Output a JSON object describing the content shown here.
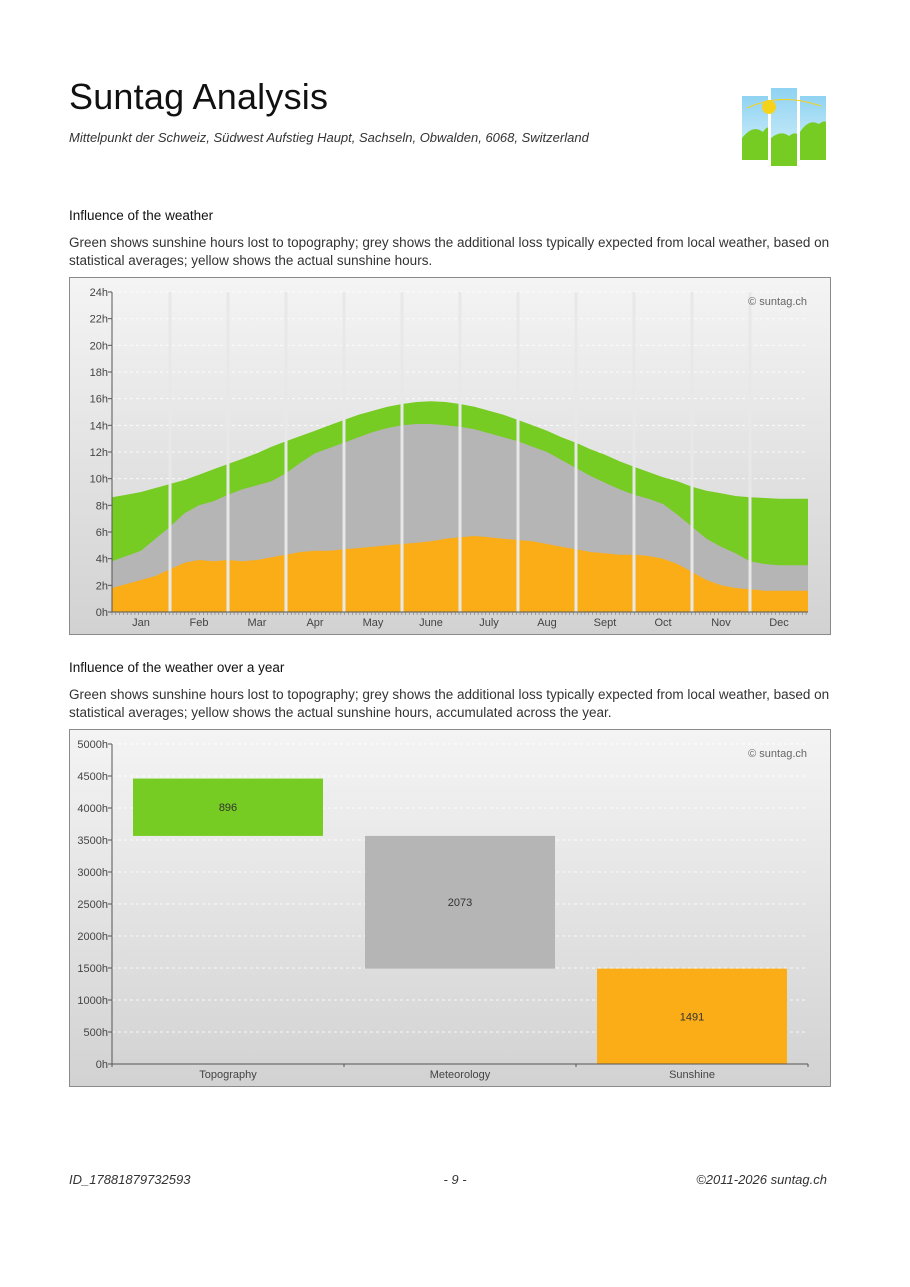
{
  "header": {
    "title": "Suntag Analysis",
    "location": "Mittelpunkt der Schweiz, Südwest Aufstieg Haupt, Sachseln, Obwalden, 6068, Switzerland"
  },
  "section1": {
    "title": "Influence of the weather",
    "description": "Green shows sunshine hours lost to topography; grey shows the additional loss typically expected from local weather, based on statistical averages; yellow shows the actual sunshine hours."
  },
  "section2": {
    "title": "Influence of the weather over a year",
    "description": "Green shows sunshine hours lost to topography; grey shows the additional loss typically expected from local weather, based on statistical averages; yellow shows the actual sunshine hours, accumulated across the year."
  },
  "chart_data": [
    {
      "type": "area",
      "watermark": "© suntag.ch",
      "ylim": [
        0,
        24
      ],
      "yticks": [
        0,
        2,
        4,
        6,
        8,
        10,
        12,
        14,
        16,
        18,
        20,
        22,
        24
      ],
      "ytick_suffix": "h",
      "categories": [
        "Jan",
        "Feb",
        "Mar",
        "Apr",
        "May",
        "June",
        "July",
        "Aug",
        "Sept",
        "Oct",
        "Nov",
        "Dec"
      ],
      "grid": true,
      "series": [
        {
          "name": "Topography",
          "color": "#76cc22",
          "x": [
            0,
            0.25,
            0.5,
            0.75,
            1,
            1.25,
            1.5,
            1.75,
            2,
            2.25,
            2.5,
            2.75,
            3,
            3.25,
            3.5,
            3.75,
            4,
            4.25,
            4.5,
            4.75,
            5,
            5.25,
            5.5,
            5.75,
            6,
            6.25,
            6.5,
            6.75,
            7,
            7.25,
            7.5,
            7.75,
            8,
            8.25,
            8.5,
            8.75,
            9,
            9.25,
            9.5,
            9.75,
            10,
            10.25,
            10.5,
            10.75,
            11,
            11.25,
            11.5,
            11.75,
            12
          ],
          "values": [
            8.6,
            8.8,
            9.0,
            9.3,
            9.6,
            9.9,
            10.3,
            10.7,
            11.1,
            11.5,
            11.9,
            12.4,
            12.8,
            13.2,
            13.6,
            14.0,
            14.4,
            14.8,
            15.1,
            15.4,
            15.6,
            15.75,
            15.8,
            15.75,
            15.6,
            15.4,
            15.1,
            14.8,
            14.4,
            14.0,
            13.6,
            13.1,
            12.7,
            12.2,
            11.8,
            11.3,
            10.9,
            10.5,
            10.1,
            9.8,
            9.4,
            9.1,
            8.9,
            8.7,
            8.6,
            8.55,
            8.5,
            8.5,
            8.5
          ]
        },
        {
          "name": "Meteorology",
          "color": "#b5b5b5",
          "x": [
            0,
            0.25,
            0.5,
            0.75,
            1,
            1.25,
            1.5,
            1.75,
            2,
            2.25,
            2.5,
            2.75,
            3,
            3.25,
            3.5,
            3.75,
            4,
            4.25,
            4.5,
            4.75,
            5,
            5.25,
            5.5,
            5.75,
            6,
            6.25,
            6.5,
            6.75,
            7,
            7.25,
            7.5,
            7.75,
            8,
            8.25,
            8.5,
            8.75,
            9,
            9.25,
            9.5,
            9.75,
            10,
            10.25,
            10.5,
            10.75,
            11,
            11.25,
            11.5,
            11.75,
            12
          ],
          "values": [
            3.8,
            4.2,
            4.6,
            5.5,
            6.4,
            7.4,
            8.0,
            8.3,
            8.8,
            9.2,
            9.5,
            9.8,
            10.4,
            11.2,
            11.9,
            12.3,
            12.7,
            13.1,
            13.5,
            13.8,
            14.0,
            14.1,
            14.1,
            14.0,
            13.9,
            13.7,
            13.4,
            13.1,
            12.8,
            12.4,
            12.0,
            11.4,
            10.8,
            10.2,
            9.7,
            9.2,
            8.8,
            8.5,
            8.1,
            7.3,
            6.4,
            5.5,
            4.9,
            4.4,
            3.8,
            3.6,
            3.5,
            3.5,
            3.5
          ]
        },
        {
          "name": "Sunshine",
          "color": "#fbad18",
          "x": [
            0,
            0.25,
            0.5,
            0.75,
            1,
            1.25,
            1.5,
            1.75,
            2,
            2.25,
            2.5,
            2.75,
            3,
            3.25,
            3.5,
            3.75,
            4,
            4.25,
            4.5,
            4.75,
            5,
            5.25,
            5.5,
            5.75,
            6,
            6.25,
            6.5,
            6.75,
            7,
            7.25,
            7.5,
            7.75,
            8,
            8.25,
            8.5,
            8.75,
            9,
            9.25,
            9.5,
            9.75,
            10,
            10.25,
            10.5,
            10.75,
            11,
            11.25,
            11.5,
            11.75,
            12
          ],
          "values": [
            1.8,
            2.1,
            2.4,
            2.7,
            3.2,
            3.7,
            3.9,
            3.8,
            3.9,
            3.8,
            3.9,
            4.1,
            4.3,
            4.5,
            4.6,
            4.6,
            4.7,
            4.8,
            4.9,
            5.0,
            5.1,
            5.2,
            5.3,
            5.5,
            5.6,
            5.7,
            5.6,
            5.5,
            5.4,
            5.3,
            5.1,
            4.9,
            4.7,
            4.5,
            4.4,
            4.3,
            4.3,
            4.2,
            4.0,
            3.6,
            3.0,
            2.4,
            2.0,
            1.8,
            1.7,
            1.6,
            1.6,
            1.6,
            1.6
          ]
        }
      ]
    },
    {
      "type": "bar",
      "subtype": "waterfall",
      "watermark": "© suntag.ch",
      "ylim": [
        0,
        5000
      ],
      "yticks": [
        0,
        500,
        1000,
        1500,
        2000,
        2500,
        3000,
        3500,
        4000,
        4500,
        5000
      ],
      "ytick_suffix": "h",
      "grid": true,
      "categories": [
        "Topography",
        "Meteorology",
        "Sunshine"
      ],
      "values": [
        896,
        2073,
        1491
      ],
      "bases": [
        3564,
        1491,
        0
      ],
      "colors": [
        "#76cc22",
        "#b5b5b5",
        "#fbad18"
      ]
    }
  ],
  "footer": {
    "id": "ID_17881879732593",
    "page": "- 9 -",
    "copyright": "©2011-2026 suntag.ch"
  }
}
